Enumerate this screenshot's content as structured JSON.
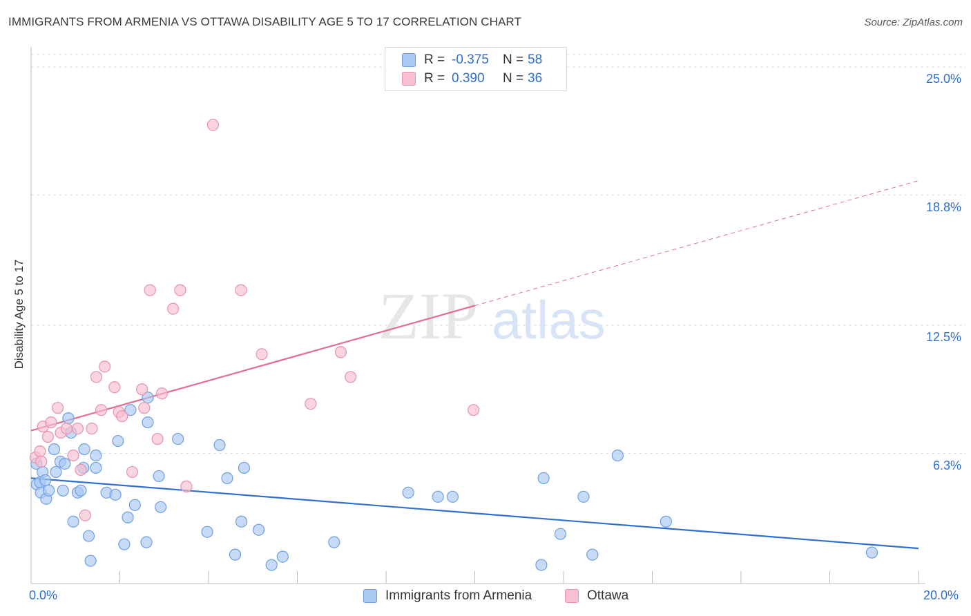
{
  "title": "IMMIGRANTS FROM ARMENIA VS OTTAWA DISABILITY AGE 5 TO 17 CORRELATION CHART",
  "source": "Source: ZipAtlas.com",
  "watermark": {
    "zip": "ZIP",
    "atlas": "atlas"
  },
  "legend": {
    "rows": [
      {
        "r_label": "R =",
        "r_value": "-0.375",
        "n_label": "N =",
        "n_value": "58",
        "color": "#a9c8f2"
      },
      {
        "r_label": "R =",
        "r_value": "0.390",
        "n_label": "N =",
        "n_value": "36",
        "color": "#f7bfd0"
      }
    ]
  },
  "colors": {
    "blue_fill": "#a9c8f2",
    "blue_stroke": "#6d9fe2",
    "blue_line": "#2f6fce",
    "pink_fill": "#f7bfd0",
    "pink_stroke": "#e891ae",
    "pink_line": "#e36b93",
    "grid": "#dddddd",
    "axis_text": "#2f6fce"
  },
  "chart_data": {
    "type": "scatter",
    "title": "IMMIGRANTS FROM ARMENIA VS OTTAWA DISABILITY AGE 5 TO 17 CORRELATION CHART",
    "xlabel": "",
    "ylabel": "Disability Age 5 to 17",
    "xlim": [
      0,
      20
    ],
    "ylim": [
      0,
      25.0
    ],
    "x_tick_labels": [
      "0.0%",
      "20.0%"
    ],
    "y_ticks": [
      6.3,
      12.5,
      18.8,
      25.0
    ],
    "y_tick_labels": [
      "6.3%",
      "12.5%",
      "18.8%",
      "25.0%"
    ],
    "grid": true,
    "legend_position": "bottom-center",
    "series": [
      {
        "name": "Immigrants from Armenia",
        "color": "#a9c8f2",
        "trend": {
          "x0": 0,
          "y0": 5.1,
          "x1": 20,
          "y1": 1.7,
          "dashed_from": null
        },
        "points": [
          [
            0.12,
            5.8
          ],
          [
            0.13,
            4.8
          ],
          [
            0.2,
            4.9
          ],
          [
            0.26,
            5.4
          ],
          [
            0.32,
            5.0
          ],
          [
            0.22,
            4.4
          ],
          [
            0.34,
            4.1
          ],
          [
            0.4,
            4.5
          ],
          [
            0.52,
            6.5
          ],
          [
            0.56,
            5.4
          ],
          [
            0.66,
            5.9
          ],
          [
            0.72,
            4.5
          ],
          [
            0.76,
            5.8
          ],
          [
            0.84,
            8.0
          ],
          [
            0.9,
            7.3
          ],
          [
            0.95,
            3.0
          ],
          [
            1.05,
            4.4
          ],
          [
            1.12,
            4.5
          ],
          [
            1.18,
            5.6
          ],
          [
            1.2,
            6.5
          ],
          [
            1.3,
            2.3
          ],
          [
            1.34,
            1.1
          ],
          [
            1.46,
            5.6
          ],
          [
            1.46,
            6.2
          ],
          [
            1.7,
            4.4
          ],
          [
            1.9,
            4.3
          ],
          [
            1.96,
            6.9
          ],
          [
            2.1,
            1.9
          ],
          [
            2.18,
            3.2
          ],
          [
            2.24,
            8.4
          ],
          [
            2.34,
            3.8
          ],
          [
            2.6,
            2.0
          ],
          [
            2.63,
            7.8
          ],
          [
            2.63,
            9.0
          ],
          [
            2.88,
            5.2
          ],
          [
            2.92,
            3.7
          ],
          [
            3.31,
            7.0
          ],
          [
            3.97,
            2.5
          ],
          [
            4.25,
            6.7
          ],
          [
            4.42,
            5.1
          ],
          [
            4.6,
            1.4
          ],
          [
            4.74,
            3.0
          ],
          [
            4.8,
            5.6
          ],
          [
            5.13,
            2.6
          ],
          [
            5.42,
            0.9
          ],
          [
            5.67,
            1.3
          ],
          [
            6.83,
            2.0
          ],
          [
            8.5,
            4.4
          ],
          [
            9.17,
            4.2
          ],
          [
            9.5,
            4.2
          ],
          [
            11.5,
            0.9
          ],
          [
            11.55,
            5.1
          ],
          [
            11.93,
            2.4
          ],
          [
            12.45,
            4.2
          ],
          [
            12.65,
            1.4
          ],
          [
            13.22,
            6.2
          ],
          [
            14.31,
            3.0
          ],
          [
            18.95,
            1.5
          ]
        ]
      },
      {
        "name": "Ottawa",
        "color": "#f7bfd0",
        "trend": {
          "x0": 0,
          "y0": 7.4,
          "x1": 20,
          "y1": 19.5,
          "dashed_from": 10.0
        },
        "points": [
          [
            0.1,
            6.1
          ],
          [
            0.2,
            6.4
          ],
          [
            0.23,
            5.9
          ],
          [
            0.27,
            7.6
          ],
          [
            0.38,
            7.1
          ],
          [
            0.45,
            7.8
          ],
          [
            0.6,
            8.5
          ],
          [
            0.67,
            7.3
          ],
          [
            0.8,
            7.5
          ],
          [
            0.95,
            6.2
          ],
          [
            1.05,
            7.5
          ],
          [
            1.12,
            5.5
          ],
          [
            1.22,
            3.3
          ],
          [
            1.37,
            7.5
          ],
          [
            1.47,
            10.0
          ],
          [
            1.58,
            8.4
          ],
          [
            1.66,
            10.5
          ],
          [
            1.88,
            9.5
          ],
          [
            1.98,
            8.3
          ],
          [
            2.05,
            8.1
          ],
          [
            2.28,
            5.4
          ],
          [
            2.5,
            9.4
          ],
          [
            2.55,
            8.5
          ],
          [
            2.68,
            14.2
          ],
          [
            2.85,
            7.0
          ],
          [
            2.95,
            9.2
          ],
          [
            3.2,
            13.3
          ],
          [
            3.36,
            14.2
          ],
          [
            3.5,
            4.7
          ],
          [
            4.1,
            22.2
          ],
          [
            4.73,
            14.2
          ],
          [
            5.2,
            11.1
          ],
          [
            6.3,
            8.7
          ],
          [
            6.98,
            11.2
          ],
          [
            7.2,
            10.0
          ],
          [
            9.97,
            8.4
          ]
        ]
      }
    ]
  }
}
